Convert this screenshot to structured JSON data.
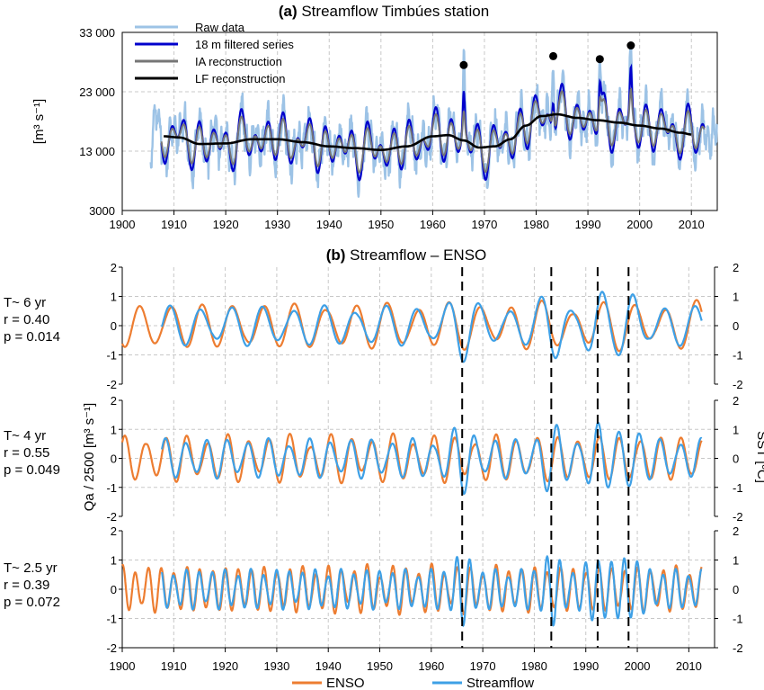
{
  "chart_data": [
    {
      "type": "line",
      "panel": "(a)",
      "title": "Streamflow Timbúes station",
      "ylabel": "[m³ s⁻¹]",
      "xlim": [
        1900,
        2015
      ],
      "ylim": [
        3000,
        33000
      ],
      "x_ticks": [
        "1900",
        "1910",
        "1920",
        "1930",
        "1940",
        "1950",
        "1960",
        "1970",
        "1980",
        "1990",
        "2000",
        "2010"
      ],
      "y_ticks": [
        "3000",
        "13 000",
        "23 000",
        "33 000"
      ],
      "grid": true,
      "legend_position": "top-left",
      "series": [
        {
          "name": "Raw data",
          "color": "#9dc3e6"
        },
        {
          "name": "18 m filtered series",
          "color": "#0000cc"
        },
        {
          "name": "IA  reconstruction",
          "color": "#767676"
        },
        {
          "name": "LF  reconstruction",
          "color": "#000000",
          "x": [
            1908,
            1911,
            1915,
            1920,
            1925,
            1930,
            1935,
            1940,
            1945,
            1950,
            1955,
            1960,
            1963,
            1966,
            1969,
            1972,
            1975,
            1978,
            1981,
            1984,
            1988,
            1992,
            1996,
            2000,
            2004,
            2008,
            2010
          ],
          "values": [
            15500,
            15300,
            14200,
            14300,
            15000,
            15000,
            14500,
            13800,
            13500,
            13200,
            13800,
            15500,
            15700,
            14800,
            13600,
            13800,
            15000,
            17300,
            18900,
            19200,
            18600,
            18200,
            17800,
            17300,
            16800,
            16100,
            15800
          ]
        }
      ],
      "peak_markers": {
        "x": [
          1966,
          1983.3,
          1992.3,
          1998.3
        ],
        "values": [
          27500,
          29000,
          28500,
          30800
        ]
      }
    },
    {
      "type": "line",
      "panel": "(b)",
      "title": "Streamflow – ENSO",
      "left_ylabel": "Qa / 2500  [m³ s⁻¹]",
      "right_ylabel": "SST [ºC]",
      "xlim": [
        1900,
        2015
      ],
      "ylim": [
        -2,
        2
      ],
      "x_ticks": [
        "1900",
        "1910",
        "1920",
        "1930",
        "1940",
        "1950",
        "1960",
        "1970",
        "1980",
        "1990",
        "2000",
        "2010"
      ],
      "y_ticks": [
        "-2",
        "-1",
        "0",
        "1",
        "2"
      ],
      "grid": true,
      "legend_position": "bottom",
      "series_names": [
        "ENSO",
        "Streamflow"
      ],
      "colors": {
        "enso": "#ed7d31",
        "streamflow": "#3ea0e6"
      },
      "event_lines_x": [
        1966,
        1983.3,
        1992.3,
        1998.3
      ],
      "subpanels": [
        {
          "annotation": [
            "T~ 6 yr",
            "r = 0.40",
            "p = 0.014"
          ]
        },
        {
          "annotation": [
            "T~ 4 yr",
            "r = 0.55",
            "p = 0.049"
          ]
        },
        {
          "annotation": [
            "T~ 2.5 yr",
            "r = 0.39",
            "p = 0.072"
          ]
        }
      ]
    }
  ],
  "labels": {
    "panel_a_letter": "(a)",
    "panel_a_title": "Streamflow Timbúes station",
    "panel_b_letter": "(b)",
    "panel_b_title": "Streamflow – ENSO",
    "legend_a": [
      "Raw data",
      "18 m filtered series",
      "IA  reconstruction",
      "LF  reconstruction"
    ],
    "legend_b_enso": "ENSO",
    "legend_b_streamflow": "Streamflow"
  }
}
